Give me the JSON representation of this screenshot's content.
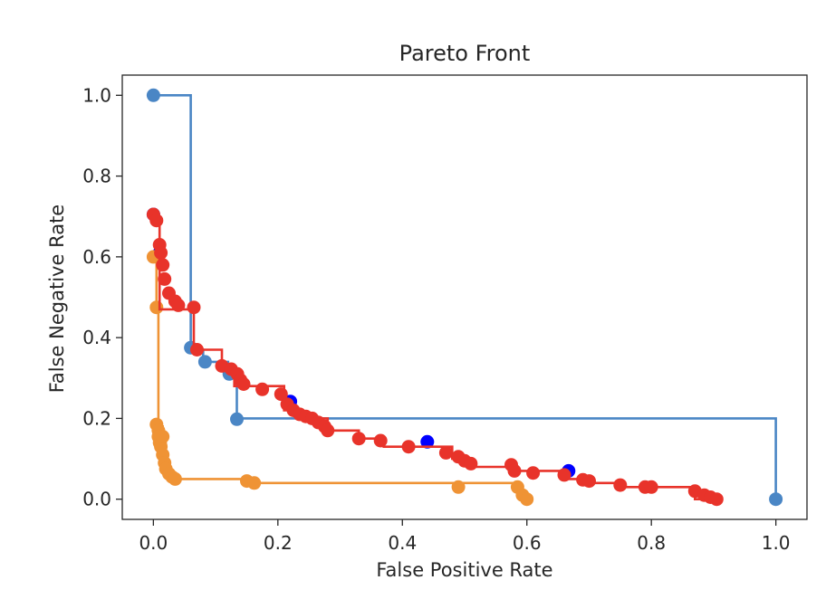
{
  "chart_data": {
    "type": "line",
    "title": "Pareto Front",
    "xlabel": "False Positive Rate",
    "ylabel": "False Negative Rate",
    "xlim": [
      -0.05,
      1.05
    ],
    "ylim": [
      -0.05,
      1.05
    ],
    "xticks": [
      "0.0",
      "0.2",
      "0.4",
      "0.6",
      "0.8",
      "1.0"
    ],
    "yticks": [
      "0.0",
      "0.2",
      "0.4",
      "0.6",
      "0.8",
      "1.0"
    ],
    "grid": false,
    "series": [
      {
        "color": "#4a86c5",
        "steps": [
          [
            0.0,
            1.0
          ],
          [
            0.06,
            1.0
          ],
          [
            0.06,
            0.37
          ],
          [
            0.08,
            0.37
          ],
          [
            0.08,
            0.34
          ],
          [
            0.12,
            0.34
          ],
          [
            0.12,
            0.31
          ],
          [
            0.134,
            0.31
          ],
          [
            0.134,
            0.2
          ],
          [
            1.0,
            0.2
          ],
          [
            1.0,
            0.0
          ]
        ],
        "points": [
          [
            0.0,
            1.0
          ],
          [
            0.06,
            0.375
          ],
          [
            0.083,
            0.34
          ],
          [
            0.122,
            0.31
          ],
          [
            0.134,
            0.198
          ],
          [
            1.0,
            0.0
          ]
        ]
      },
      {
        "color": "#0000ff",
        "steps": [],
        "points": [
          [
            0.0,
            0.705
          ],
          [
            0.01,
            0.61
          ],
          [
            0.22,
            0.242
          ],
          [
            0.44,
            0.142
          ],
          [
            0.667,
            0.07
          ]
        ]
      },
      {
        "color": "#ef9335",
        "steps": [
          [
            0.0,
            0.6
          ],
          [
            0.005,
            0.6
          ],
          [
            0.005,
            0.47
          ],
          [
            0.008,
            0.47
          ],
          [
            0.008,
            0.18
          ],
          [
            0.015,
            0.18
          ],
          [
            0.015,
            0.15
          ],
          [
            0.02,
            0.15
          ],
          [
            0.02,
            0.08
          ],
          [
            0.025,
            0.08
          ],
          [
            0.025,
            0.05
          ],
          [
            0.15,
            0.05
          ],
          [
            0.15,
            0.04
          ],
          [
            0.58,
            0.04
          ],
          [
            0.58,
            0.03
          ],
          [
            0.59,
            0.03
          ],
          [
            0.59,
            0.0
          ]
        ],
        "points": [
          [
            0.0,
            0.6
          ],
          [
            0.005,
            0.475
          ],
          [
            0.005,
            0.185
          ],
          [
            0.008,
            0.17
          ],
          [
            0.008,
            0.155
          ],
          [
            0.01,
            0.14
          ],
          [
            0.012,
            0.13
          ],
          [
            0.015,
            0.155
          ],
          [
            0.015,
            0.11
          ],
          [
            0.018,
            0.09
          ],
          [
            0.02,
            0.075
          ],
          [
            0.025,
            0.063
          ],
          [
            0.03,
            0.055
          ],
          [
            0.035,
            0.05
          ],
          [
            0.15,
            0.045
          ],
          [
            0.162,
            0.04
          ],
          [
            0.49,
            0.03
          ],
          [
            0.585,
            0.03
          ],
          [
            0.593,
            0.01
          ],
          [
            0.6,
            0.0
          ]
        ]
      },
      {
        "color": "#e8332a",
        "steps": [
          [
            0.0,
            0.71
          ],
          [
            0.0,
            0.69
          ],
          [
            0.01,
            0.69
          ],
          [
            0.01,
            0.47
          ],
          [
            0.065,
            0.47
          ],
          [
            0.065,
            0.37
          ],
          [
            0.11,
            0.37
          ],
          [
            0.11,
            0.33
          ],
          [
            0.13,
            0.33
          ],
          [
            0.13,
            0.28
          ],
          [
            0.21,
            0.28
          ],
          [
            0.21,
            0.22
          ],
          [
            0.24,
            0.22
          ],
          [
            0.24,
            0.2
          ],
          [
            0.28,
            0.2
          ],
          [
            0.28,
            0.17
          ],
          [
            0.33,
            0.17
          ],
          [
            0.33,
            0.15
          ],
          [
            0.37,
            0.15
          ],
          [
            0.37,
            0.13
          ],
          [
            0.48,
            0.13
          ],
          [
            0.48,
            0.1
          ],
          [
            0.51,
            0.1
          ],
          [
            0.51,
            0.08
          ],
          [
            0.58,
            0.08
          ],
          [
            0.58,
            0.07
          ],
          [
            0.66,
            0.07
          ],
          [
            0.66,
            0.05
          ],
          [
            0.69,
            0.05
          ],
          [
            0.69,
            0.04
          ],
          [
            0.75,
            0.04
          ],
          [
            0.75,
            0.03
          ],
          [
            0.87,
            0.03
          ],
          [
            0.87,
            0.0
          ],
          [
            0.91,
            0.0
          ]
        ],
        "points": [
          [
            0.0,
            0.705
          ],
          [
            0.005,
            0.69
          ],
          [
            0.01,
            0.63
          ],
          [
            0.012,
            0.61
          ],
          [
            0.015,
            0.58
          ],
          [
            0.018,
            0.545
          ],
          [
            0.025,
            0.51
          ],
          [
            0.035,
            0.49
          ],
          [
            0.04,
            0.48
          ],
          [
            0.065,
            0.475
          ],
          [
            0.07,
            0.37
          ],
          [
            0.11,
            0.33
          ],
          [
            0.125,
            0.322
          ],
          [
            0.135,
            0.31
          ],
          [
            0.14,
            0.295
          ],
          [
            0.145,
            0.285
          ],
          [
            0.175,
            0.272
          ],
          [
            0.205,
            0.26
          ],
          [
            0.215,
            0.235
          ],
          [
            0.225,
            0.22
          ],
          [
            0.235,
            0.21
          ],
          [
            0.245,
            0.205
          ],
          [
            0.255,
            0.2
          ],
          [
            0.265,
            0.19
          ],
          [
            0.275,
            0.18
          ],
          [
            0.28,
            0.17
          ],
          [
            0.33,
            0.15
          ],
          [
            0.365,
            0.145
          ],
          [
            0.41,
            0.13
          ],
          [
            0.47,
            0.115
          ],
          [
            0.49,
            0.105
          ],
          [
            0.5,
            0.095
          ],
          [
            0.51,
            0.088
          ],
          [
            0.575,
            0.085
          ],
          [
            0.58,
            0.07
          ],
          [
            0.61,
            0.065
          ],
          [
            0.66,
            0.06
          ],
          [
            0.69,
            0.048
          ],
          [
            0.7,
            0.045
          ],
          [
            0.75,
            0.035
          ],
          [
            0.79,
            0.03
          ],
          [
            0.8,
            0.03
          ],
          [
            0.87,
            0.02
          ],
          [
            0.885,
            0.01
          ],
          [
            0.895,
            0.005
          ],
          [
            0.905,
            0.0
          ]
        ]
      }
    ]
  }
}
